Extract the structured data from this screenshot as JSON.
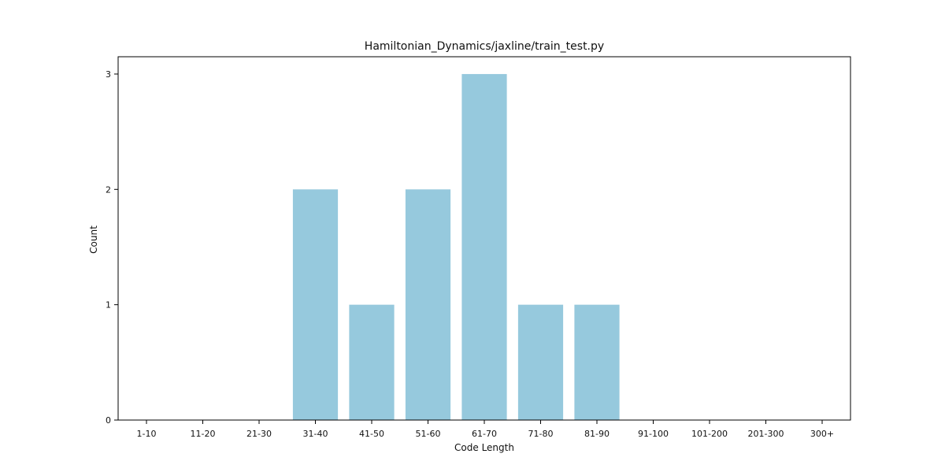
{
  "chart_data": {
    "type": "bar",
    "title": "Hamiltonian_Dynamics/jaxline/train_test.py",
    "xlabel": "Code Length",
    "ylabel": "Count",
    "categories": [
      "1-10",
      "11-20",
      "21-30",
      "31-40",
      "41-50",
      "51-60",
      "61-70",
      "71-80",
      "81-90",
      "91-100",
      "101-200",
      "201-300",
      "300+"
    ],
    "values": [
      0,
      0,
      0,
      2,
      1,
      2,
      3,
      1,
      1,
      0,
      0,
      0,
      0
    ],
    "ylim": [
      0,
      3.15
    ],
    "yticks": [
      0,
      1,
      2,
      3
    ],
    "bar_color": "#96c9dd",
    "grid": false,
    "legend": "none"
  }
}
